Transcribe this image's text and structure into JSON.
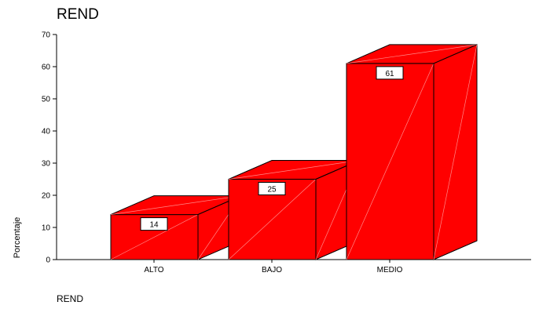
{
  "chart_data": {
    "type": "bar",
    "title": "REND",
    "xlabel": "REND",
    "ylabel": "Porcentaje",
    "categories": [
      "ALTO",
      "BAJO",
      "MEDIO"
    ],
    "values": [
      14,
      25,
      61
    ],
    "data_labels": [
      "14",
      "25",
      "61"
    ],
    "ylim": [
      0,
      70
    ],
    "yticks": [
      0,
      10,
      20,
      30,
      40,
      50,
      60,
      70
    ],
    "ytick_labels": [
      "0",
      "10",
      "20",
      "30",
      "40",
      "50",
      "60",
      "70"
    ],
    "style": "3d",
    "bar_color": "#ff0000",
    "grid": false,
    "legend": "none"
  }
}
